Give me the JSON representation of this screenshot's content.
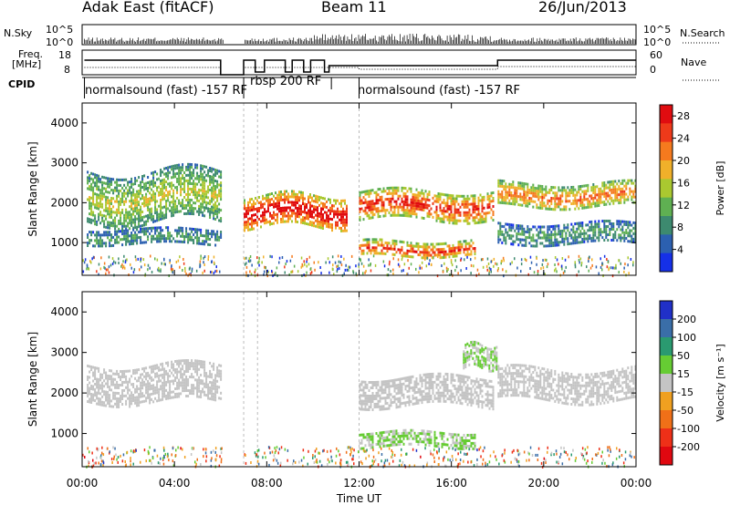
{
  "header": {
    "station": "Adak East (fitACF)",
    "beam": "Beam 11",
    "date": "26/Jun/2013"
  },
  "strip": {
    "nsky_label": "N.Sky",
    "nsearch_label": "N.Search",
    "log_ticks": [
      "10^5",
      "10^0"
    ],
    "freq_label_1": "Freq.",
    "freq_label_2": "[MHz]",
    "freq_ticks": [
      "18",
      "8"
    ],
    "nave_ticks": [
      "60",
      "0"
    ],
    "nave_label": "Nave",
    "cpid_label": "CPID",
    "cpid_segments": [
      "normalsound (fast) -157 RF",
      "rbsp 200 RF",
      "normalsound (fast) -157 RF"
    ]
  },
  "chart_data": [
    {
      "type": "heatmap",
      "panel": "power",
      "ylabel": "Slant Range [km]",
      "xlabel": "Time UT",
      "x_ticks": [
        "00:00",
        "04:00",
        "08:00",
        "12:00",
        "16:00",
        "20:00",
        "00:00"
      ],
      "xlim_hours": [
        0,
        24
      ],
      "y_ticks": [
        1000,
        2000,
        3000,
        4000
      ],
      "ylim_km": [
        180,
        4500
      ],
      "colorbar": {
        "label": "Power [dB]",
        "ticks": [
          4,
          8,
          12,
          16,
          20,
          24,
          28
        ],
        "range": [
          0,
          30
        ],
        "colors": [
          "#1530e8",
          "#2c60b0",
          "#3d8a6f",
          "#5fb052",
          "#aac830",
          "#f0b02a",
          "#f57a1e",
          "#ee3a1a",
          "#e00c10"
        ]
      },
      "echo_bands": [
        {
          "t": [
            0.2,
            6.0
          ],
          "range_km": [
            1500,
            2800
          ],
          "power_db": 14
        },
        {
          "t": [
            0.2,
            6.0
          ],
          "range_km": [
            950,
            1350
          ],
          "power_db": 9
        },
        {
          "t": [
            7.0,
            11.5
          ],
          "range_km": [
            1400,
            2200
          ],
          "power_db": 27
        },
        {
          "t": [
            12.0,
            17.8
          ],
          "range_km": [
            1600,
            2300
          ],
          "power_db": 24
        },
        {
          "t": [
            12.0,
            17.0
          ],
          "range_km": [
            650,
            1050
          ],
          "power_db": 23
        },
        {
          "t": [
            18.0,
            24.0
          ],
          "range_km": [
            1900,
            2500
          ],
          "power_db": 20
        },
        {
          "t": [
            18.0,
            24.0
          ],
          "range_km": [
            1000,
            1500
          ],
          "power_db": 9
        }
      ]
    },
    {
      "type": "heatmap",
      "panel": "velocity",
      "ylabel": "Slant Range [km]",
      "xlabel": "Time UT",
      "x_ticks": [
        "00:00",
        "04:00",
        "08:00",
        "12:00",
        "16:00",
        "20:00",
        "00:00"
      ],
      "xlim_hours": [
        0,
        24
      ],
      "y_ticks": [
        1000,
        2000,
        3000,
        4000
      ],
      "ylim_km": [
        180,
        4500
      ],
      "colorbar": {
        "label": "Velocity [m s⁻¹]",
        "ticks": [
          200,
          100,
          50,
          15,
          -15,
          -50,
          -100,
          -200
        ],
        "range": [
          -250,
          250
        ],
        "colors": [
          "#2030c8",
          "#3a6ea8",
          "#2a9a70",
          "#66cc33",
          "#c4c4c4",
          "#f0a020",
          "#f07018",
          "#ee3018",
          "#e00810"
        ]
      },
      "echo_bands": [
        {
          "t": [
            0.2,
            6.0
          ],
          "range_km": [
            1800,
            2700
          ],
          "velocity": 0
        },
        {
          "t": [
            12.0,
            17.8
          ],
          "range_km": [
            1700,
            2400
          ],
          "velocity": 0
        },
        {
          "t": [
            12.0,
            17.0
          ],
          "range_km": [
            650,
            1050
          ],
          "velocity": 30
        },
        {
          "t": [
            16.5,
            18.0
          ],
          "range_km": [
            2600,
            3200
          ],
          "velocity": 30
        },
        {
          "t": [
            18.0,
            24.0
          ],
          "range_km": [
            1800,
            2600
          ],
          "velocity": 0
        }
      ]
    }
  ]
}
